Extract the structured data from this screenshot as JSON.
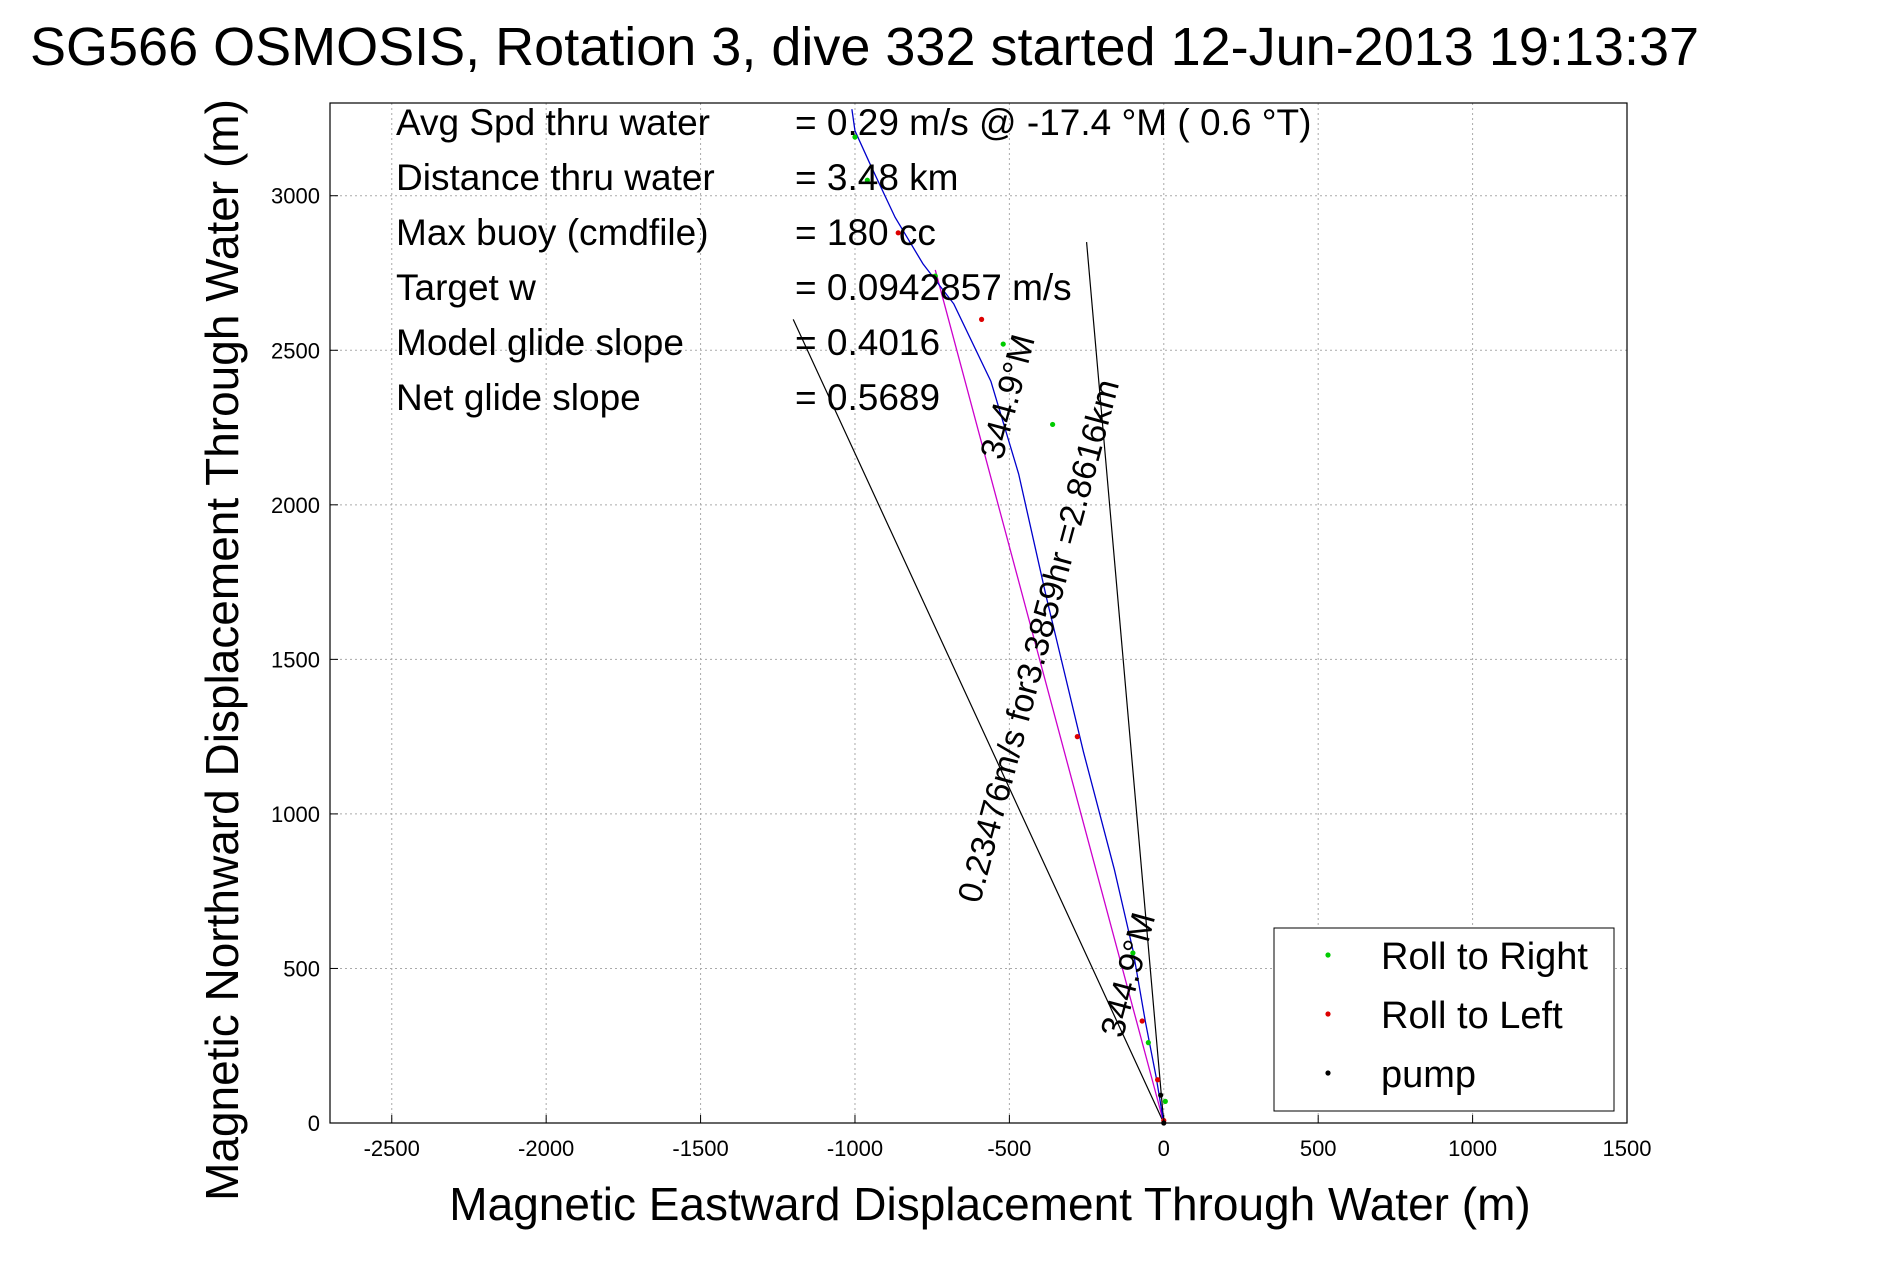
{
  "chart_data": {
    "type": "scatter",
    "title": "SG566 OSMOSIS, Rotation 3, dive 332 started 12-Jun-2013 19:13:37",
    "xlabel": "Magnetic Eastward Displacement Through Water (m)",
    "ylabel": "Magnetic Northward Displacement Through Water (m)",
    "xlim": [
      -2700,
      1500
    ],
    "ylim": [
      0,
      3300
    ],
    "xticks": [
      -2500,
      -2000,
      -1500,
      -1000,
      -500,
      0,
      500,
      1000,
      1500
    ],
    "yticks": [
      0,
      500,
      1000,
      1500,
      2000,
      2500,
      3000
    ],
    "grid": true,
    "legend_position": "bottom-right",
    "info": [
      {
        "label": "Avg Spd thru water",
        "value": "=  0.29 m/s @ -17.4 °M (  0.6 °T)"
      },
      {
        "label": "Distance thru water",
        "value": "=  3.48 km"
      },
      {
        "label": "Max buoy (cmdfile)",
        "value": "= 180 cc"
      },
      {
        "label": "Target w",
        "value": "= 0.0942857 m/s"
      },
      {
        "label": "Model glide slope",
        "value": "= 0.4016"
      },
      {
        "label": "Net glide slope",
        "value": "= 0.5689"
      }
    ],
    "annotations": [
      {
        "text": "0.23476m/s for3.3859hr =2.8616km",
        "x": -370,
        "y": 1550,
        "angle": -75
      },
      {
        "text": "344.9°M",
        "x": -470,
        "y": 2340,
        "angle": -75
      },
      {
        "text": "344.9°M",
        "x": -80,
        "y": 470,
        "angle": -75
      }
    ],
    "series": [
      {
        "name": "Roll to Right",
        "color": "#00cc00",
        "marker": "dot",
        "points": [
          [
            5,
            70
          ],
          [
            -50,
            260
          ],
          [
            -100,
            550
          ],
          [
            -360,
            2260
          ],
          [
            -520,
            2520
          ],
          [
            -740,
            2740
          ],
          [
            -960,
            3050
          ],
          [
            -1000,
            3190
          ]
        ]
      },
      {
        "name": "Roll to Left",
        "color": "#dd0000",
        "marker": "dot",
        "points": [
          [
            0,
            8
          ],
          [
            -20,
            140
          ],
          [
            -70,
            330
          ],
          [
            -280,
            1250
          ],
          [
            -590,
            2600
          ],
          [
            -860,
            2880
          ]
        ]
      },
      {
        "name": "pump",
        "color": "#000000",
        "marker": "dot",
        "points": [
          [
            0,
            0
          ],
          [
            -10,
            90
          ]
        ]
      }
    ],
    "track": {
      "color": "#0000cc",
      "points": [
        [
          0,
          0
        ],
        [
          -25,
          150
        ],
        [
          -60,
          330
        ],
        [
          -100,
          560
        ],
        [
          -160,
          820
        ],
        [
          -260,
          1200
        ],
        [
          -380,
          1700
        ],
        [
          -470,
          2100
        ],
        [
          -560,
          2400
        ],
        [
          -680,
          2650
        ],
        [
          -780,
          2780
        ],
        [
          -870,
          2930
        ],
        [
          -950,
          3100
        ],
        [
          -1000,
          3210
        ],
        [
          -1010,
          3280
        ]
      ]
    },
    "net_vector": {
      "color": "#cc00cc",
      "points": [
        [
          0,
          0
        ],
        [
          -740,
          2760
        ]
      ]
    },
    "sector_lines": {
      "color": "#000000",
      "lines": [
        [
          [
            0,
            0
          ],
          [
            -1200,
            2600
          ]
        ],
        [
          [
            0,
            0
          ],
          [
            -250,
            2850
          ]
        ]
      ]
    }
  }
}
